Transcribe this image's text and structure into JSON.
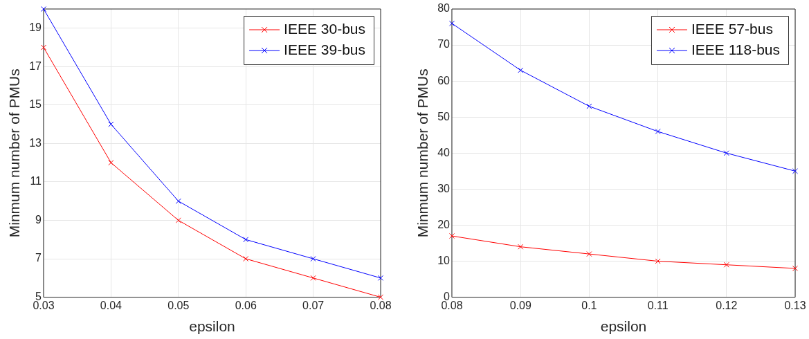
{
  "chart_data": [
    {
      "type": "line",
      "xlabel": "epsilon",
      "ylabel": "Minmum number of PMUs",
      "x": [
        0.03,
        0.04,
        0.05,
        0.06,
        0.07,
        0.08
      ],
      "xlim": [
        0.03,
        0.08
      ],
      "xticks": [
        0.03,
        0.04,
        0.05,
        0.06,
        0.07,
        0.08
      ],
      "ylim": [
        5,
        20
      ],
      "yticks": [
        5,
        7,
        9,
        11,
        13,
        15,
        17,
        19
      ],
      "grid": true,
      "legend": "top right",
      "marker": "cross",
      "line_style": "solid",
      "series": [
        {
          "name": "IEEE 30-bus",
          "color": "#ff0000",
          "values": [
            18,
            12,
            9,
            7,
            6,
            5
          ]
        },
        {
          "name": "IEEE 39-bus",
          "color": "#0000ff",
          "values": [
            20,
            14,
            10,
            8,
            7,
            6
          ]
        }
      ]
    },
    {
      "type": "line",
      "xlabel": "epsilon",
      "ylabel": "Minmum number of PMUs",
      "x": [
        0.08,
        0.09,
        0.1,
        0.11,
        0.12,
        0.13
      ],
      "xlim": [
        0.08,
        0.13
      ],
      "xticks": [
        0.08,
        0.09,
        0.1,
        0.11,
        0.12,
        0.13
      ],
      "ylim": [
        0,
        80
      ],
      "yticks": [
        0,
        10,
        20,
        30,
        40,
        50,
        60,
        70,
        80
      ],
      "grid": true,
      "legend": "top right",
      "marker": "cross",
      "line_style": "solid",
      "series": [
        {
          "name": "IEEE 57-bus",
          "color": "#ff0000",
          "values": [
            17,
            14,
            12,
            10,
            9,
            8
          ]
        },
        {
          "name": "IEEE 118-bus",
          "color": "#0000ff",
          "values": [
            76,
            63,
            53,
            46,
            40,
            35
          ]
        }
      ]
    }
  ]
}
